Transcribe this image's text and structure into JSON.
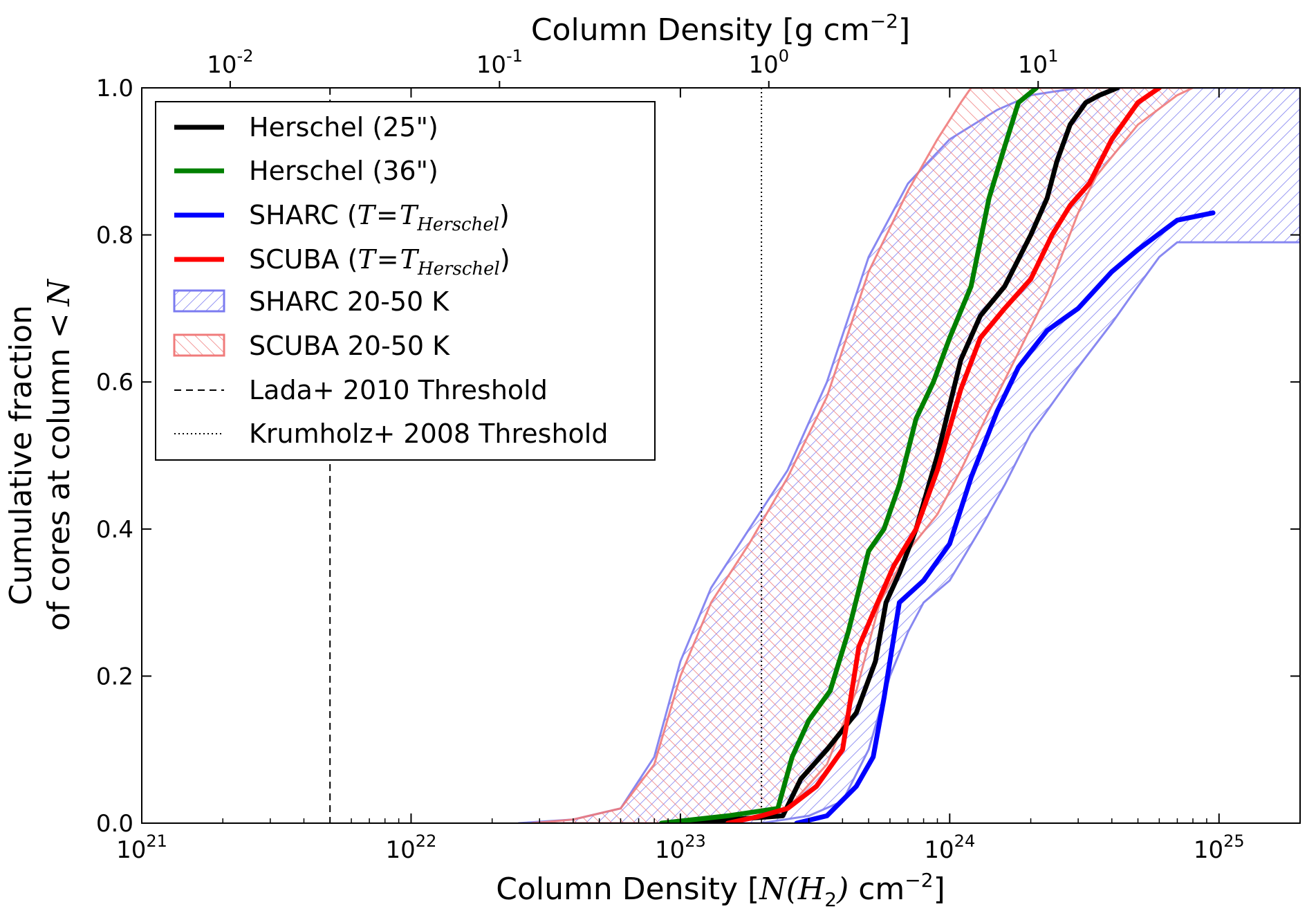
{
  "chart_data": {
    "type": "line",
    "x_scale": "log",
    "xlim": [
      1e+21,
      2e+25
    ],
    "ylim": [
      0.0,
      1.0
    ],
    "grid": false,
    "legend_position": "top-left",
    "xlabel": {
      "prefix": "Column Density [",
      "math": "N(H",
      "sub": "2",
      "close": ")",
      "unit": " cm",
      "sup": "−2",
      "suffix": "]"
    },
    "ylabel_line1": "Cumulative fraction",
    "ylabel_line2_text": "of cores at column <",
    "ylabel_line2_math": "N",
    "top_xlabel": {
      "text": "Column Density [g cm",
      "sup": "−2",
      "suffix": "]"
    },
    "x_ticks": [
      {
        "value": 1e+21,
        "base": "10",
        "exp": "21"
      },
      {
        "value": 1e+22,
        "base": "10",
        "exp": "22"
      },
      {
        "value": 1e+23,
        "base": "10",
        "exp": "23"
      },
      {
        "value": 1e+24,
        "base": "10",
        "exp": "24"
      },
      {
        "value": 1e+25,
        "base": "10",
        "exp": "25"
      }
    ],
    "top_x_ticks": [
      {
        "value": 2.13e+21,
        "base": "10",
        "exp": "-2"
      },
      {
        "value": 2.13e+22,
        "base": "10",
        "exp": "-1"
      },
      {
        "value": 2.13e+23,
        "base": "10",
        "exp": "0"
      },
      {
        "value": 2.13e+24,
        "base": "10",
        "exp": "1"
      }
    ],
    "y_ticks": [
      "0.0",
      "0.2",
      "0.4",
      "0.6",
      "0.8",
      "1.0"
    ],
    "y_tick_values": [
      0.0,
      0.2,
      0.4,
      0.6,
      0.8,
      1.0
    ],
    "thresholds": [
      {
        "name": "Lada+ 2010 Threshold",
        "x": 5e+21,
        "style": "dashed"
      },
      {
        "name": "Krumholz+ 2008 Threshold",
        "x": 2e+23,
        "style": "dotted"
      }
    ],
    "bands": [
      {
        "name": "SHARC 20-50 K",
        "color": "#7b7bf0",
        "lower": [
          [
            1e+23,
            0
          ],
          [
            2e+23,
            0
          ],
          [
            3e+23,
            0.01
          ],
          [
            4e+23,
            0.03
          ],
          [
            5e+23,
            0.1
          ],
          [
            6e+23,
            0.2
          ],
          [
            7e+23,
            0.26
          ],
          [
            8e+23,
            0.3
          ],
          [
            1e+24,
            0.33
          ],
          [
            1.3e+24,
            0.4
          ],
          [
            1.6e+24,
            0.46
          ],
          [
            2e+24,
            0.53
          ],
          [
            3e+24,
            0.62
          ],
          [
            4e+24,
            0.68
          ],
          [
            5e+24,
            0.73
          ],
          [
            6e+24,
            0.77
          ],
          [
            7e+24,
            0.79
          ],
          [
            2e+25,
            0.79
          ]
        ],
        "upper": [
          [
            2.5e+22,
            0
          ],
          [
            4e+22,
            0.005
          ],
          [
            6e+22,
            0.02
          ],
          [
            8e+22,
            0.09
          ],
          [
            1e+23,
            0.22
          ],
          [
            1.3e+23,
            0.32
          ],
          [
            1.8e+23,
            0.4
          ],
          [
            2.5e+23,
            0.48
          ],
          [
            3.5e+23,
            0.6
          ],
          [
            5e+23,
            0.77
          ],
          [
            7e+23,
            0.87
          ],
          [
            1e+24,
            0.93
          ],
          [
            1.5e+24,
            0.97
          ],
          [
            2e+24,
            0.99
          ],
          [
            3e+24,
            1.0
          ],
          [
            2e+25,
            1.0
          ]
        ]
      },
      {
        "name": "SCUBA 20-50 K",
        "color": "#f07b7b",
        "lower": [
          [
            1e+23,
            0
          ],
          [
            2.5e+23,
            0.02
          ],
          [
            3.5e+23,
            0.08
          ],
          [
            4.5e+23,
            0.18
          ],
          [
            5.5e+23,
            0.3
          ],
          [
            7e+23,
            0.37
          ],
          [
            9e+23,
            0.42
          ],
          [
            1.1e+24,
            0.48
          ],
          [
            1.4e+24,
            0.56
          ],
          [
            1.8e+24,
            0.64
          ],
          [
            2.3e+24,
            0.72
          ],
          [
            3e+24,
            0.83
          ],
          [
            3.5e+24,
            0.88
          ],
          [
            5e+24,
            0.95
          ],
          [
            7e+24,
            0.99
          ],
          [
            8e+24,
            1.0
          ]
        ],
        "upper": [
          [
            2.8e+22,
            0
          ],
          [
            4e+22,
            0.005
          ],
          [
            6e+22,
            0.02
          ],
          [
            8e+22,
            0.08
          ],
          [
            1e+23,
            0.2
          ],
          [
            1.3e+23,
            0.3
          ],
          [
            1.8e+23,
            0.38
          ],
          [
            2.5e+23,
            0.47
          ],
          [
            3.5e+23,
            0.58
          ],
          [
            5e+23,
            0.75
          ],
          [
            7e+23,
            0.86
          ],
          [
            9e+23,
            0.93
          ],
          [
            1.1e+24,
            0.98
          ],
          [
            1.2e+24,
            1.0
          ],
          [
            7e+24,
            1.0
          ]
        ]
      }
    ],
    "series": [
      {
        "name": "Herschel (25\")",
        "color": "#000000",
        "x": [
          1e+23,
          2.4e+23,
          2.8e+23,
          3.5e+23,
          4.5e+23,
          5.3e+23,
          5.8e+23,
          6.5e+23,
          7.5e+23,
          9e+23,
          1.1e+24,
          1.3e+24,
          1.6e+24,
          2e+24,
          2.3e+24,
          2.5e+24,
          2.8e+24,
          3.2e+24,
          3.6e+24,
          4.2e+24
        ],
        "y": [
          0.0,
          0.01,
          0.06,
          0.1,
          0.15,
          0.22,
          0.3,
          0.34,
          0.4,
          0.5,
          0.63,
          0.69,
          0.73,
          0.8,
          0.85,
          0.9,
          0.95,
          0.98,
          0.99,
          1.0
        ]
      },
      {
        "name": "Herschel (36\")",
        "color": "#008000",
        "x": [
          8.5e+22,
          1.5e+23,
          2.3e+23,
          2.6e+23,
          3e+23,
          3.6e+23,
          4.2e+23,
          5e+23,
          5.7e+23,
          6.5e+23,
          7.5e+23,
          8.7e+23,
          1e+24,
          1.2e+24,
          1.4e+24,
          1.6e+24,
          1.8e+24,
          2.1e+24
        ],
        "y": [
          0.0,
          0.01,
          0.02,
          0.09,
          0.14,
          0.18,
          0.26,
          0.37,
          0.4,
          0.46,
          0.55,
          0.6,
          0.66,
          0.73,
          0.85,
          0.92,
          0.98,
          1.0
        ]
      },
      {
        "name": "SHARC (T=T_Herschel)",
        "color": "#0000ff",
        "math_name": true,
        "prefix": "SHARC (",
        "math": "T",
        "eq": "=",
        "math2": "T",
        "sub": "Herschel",
        "suffix": ")",
        "x": [
          2.7e+23,
          3.5e+23,
          4.5e+23,
          5.2e+23,
          5.7e+23,
          6.5e+23,
          8e+23,
          1e+24,
          1.2e+24,
          1.5e+24,
          1.8e+24,
          2.3e+24,
          3e+24,
          4e+24,
          5e+24,
          7e+24,
          9.5e+24
        ],
        "y": [
          0.0,
          0.01,
          0.05,
          0.09,
          0.17,
          0.3,
          0.33,
          0.38,
          0.47,
          0.56,
          0.62,
          0.67,
          0.7,
          0.75,
          0.78,
          0.82,
          0.83
        ]
      },
      {
        "name": "SCUBA (T=T_Herschel)",
        "color": "#ff0000",
        "math_name": true,
        "prefix": "SCUBA (",
        "math": "T",
        "eq": "=",
        "math2": "T",
        "sub": "Herschel",
        "suffix": ")",
        "x": [
          1.5e+23,
          2e+23,
          2.5e+23,
          3.2e+23,
          4e+23,
          4.6e+23,
          5.4e+23,
          6.2e+23,
          7.5e+23,
          9e+23,
          1.1e+24,
          1.3e+24,
          1.6e+24,
          2e+24,
          2.4e+24,
          2.8e+24,
          3.3e+24,
          4e+24,
          5e+24,
          6e+24
        ],
        "y": [
          0.0,
          0.01,
          0.02,
          0.05,
          0.1,
          0.24,
          0.3,
          0.35,
          0.4,
          0.48,
          0.59,
          0.66,
          0.7,
          0.74,
          0.8,
          0.84,
          0.87,
          0.93,
          0.98,
          1.0
        ]
      }
    ],
    "legend": [
      {
        "label": "Herschel (25\")",
        "kind": "line",
        "color": "#000000"
      },
      {
        "label": "Herschel (36\")",
        "kind": "line",
        "color": "#008000"
      },
      {
        "label_prefix": "SHARC (",
        "kind": "line-math",
        "color": "#0000ff"
      },
      {
        "label_prefix": "SCUBA (",
        "kind": "line-math",
        "color": "#ff0000"
      },
      {
        "label": "SHARC 20-50 K",
        "kind": "band",
        "color": "#7b7bf0"
      },
      {
        "label": "SCUBA 20-50 K",
        "kind": "band",
        "color": "#f07b7b"
      },
      {
        "label": "Lada+ 2010 Threshold",
        "kind": "dashed",
        "color": "#000000"
      },
      {
        "label": "Krumholz+ 2008 Threshold",
        "kind": "dotted",
        "color": "#000000"
      }
    ]
  }
}
